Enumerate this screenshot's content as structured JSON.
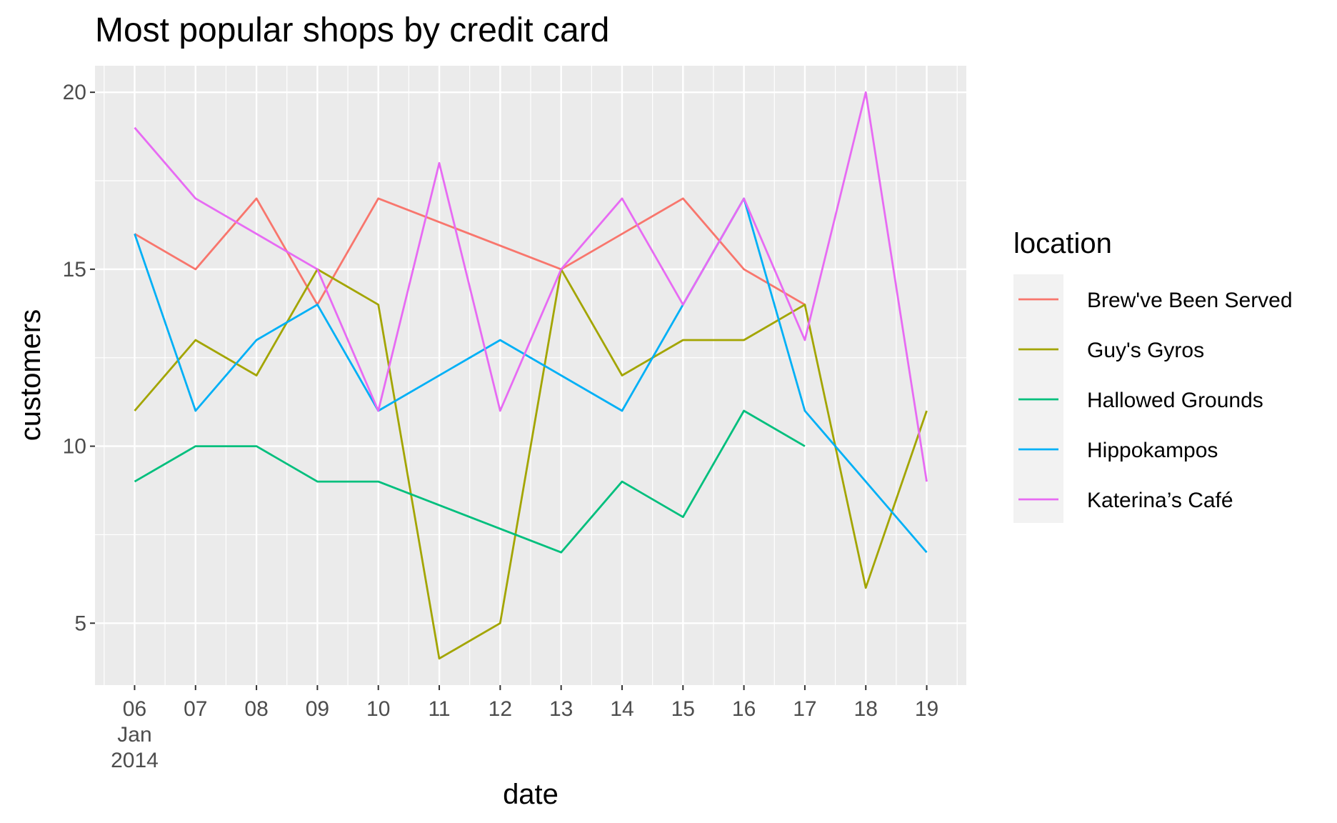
{
  "chart_data": {
    "type": "line",
    "title": "Most popular shops by credit card",
    "xlabel": "date",
    "ylabel": "customers",
    "x": [
      "2014-01-06",
      "2014-01-07",
      "2014-01-08",
      "2014-01-09",
      "2014-01-10",
      "2014-01-11",
      "2014-01-12",
      "2014-01-13",
      "2014-01-14",
      "2014-01-15",
      "2014-01-16",
      "2014-01-17",
      "2014-01-18",
      "2014-01-19"
    ],
    "x_tick_labels": [
      "06",
      "07",
      "08",
      "09",
      "10",
      "11",
      "12",
      "13",
      "14",
      "15",
      "16",
      "17",
      "18",
      "19"
    ],
    "x_tick_sublabel": [
      "Jan",
      "2014"
    ],
    "y_ticks": [
      5,
      10,
      15,
      20
    ],
    "ylim": [
      3.25,
      20.75
    ],
    "grid": true,
    "legend": {
      "title": "location",
      "placement": "right"
    },
    "series": [
      {
        "name": "Brew've Been Served",
        "color": "#F8766D",
        "points": [
          [
            "2014-01-06",
            16
          ],
          [
            "2014-01-07",
            15
          ],
          [
            "2014-01-08",
            17
          ],
          [
            "2014-01-09",
            14
          ],
          [
            "2014-01-10",
            17
          ],
          [
            "2014-01-13",
            15
          ],
          [
            "2014-01-15",
            17
          ],
          [
            "2014-01-16",
            15
          ],
          [
            "2014-01-17",
            14
          ]
        ]
      },
      {
        "name": "Guy's Gyros",
        "color": "#A3A500",
        "points": [
          [
            "2014-01-06",
            11
          ],
          [
            "2014-01-07",
            13
          ],
          [
            "2014-01-08",
            12
          ],
          [
            "2014-01-09",
            15
          ],
          [
            "2014-01-10",
            14
          ],
          [
            "2014-01-11",
            4
          ],
          [
            "2014-01-12",
            5
          ],
          [
            "2014-01-13",
            15
          ],
          [
            "2014-01-14",
            12
          ],
          [
            "2014-01-15",
            13
          ],
          [
            "2014-01-16",
            13
          ],
          [
            "2014-01-17",
            14
          ],
          [
            "2014-01-18",
            6
          ],
          [
            "2014-01-19",
            11
          ]
        ]
      },
      {
        "name": "Hallowed Grounds",
        "color": "#00BF7D",
        "points": [
          [
            "2014-01-06",
            9
          ],
          [
            "2014-01-07",
            10
          ],
          [
            "2014-01-08",
            10
          ],
          [
            "2014-01-09",
            9
          ],
          [
            "2014-01-10",
            9
          ],
          [
            "2014-01-13",
            7
          ],
          [
            "2014-01-14",
            9
          ],
          [
            "2014-01-15",
            8
          ],
          [
            "2014-01-16",
            11
          ],
          [
            "2014-01-17",
            10
          ]
        ]
      },
      {
        "name": "Hippokampos",
        "color": "#00B0F6",
        "points": [
          [
            "2014-01-06",
            16
          ],
          [
            "2014-01-07",
            11
          ],
          [
            "2014-01-08",
            13
          ],
          [
            "2014-01-09",
            14
          ],
          [
            "2014-01-10",
            11
          ],
          [
            "2014-01-12",
            13
          ],
          [
            "2014-01-14",
            11
          ],
          [
            "2014-01-15",
            14
          ],
          [
            "2014-01-16",
            17
          ],
          [
            "2014-01-17",
            11
          ],
          [
            "2014-01-19",
            7
          ]
        ]
      },
      {
        "name": "Katerina’s Café",
        "color": "#E76BF3",
        "points": [
          [
            "2014-01-06",
            19
          ],
          [
            "2014-01-07",
            17
          ],
          [
            "2014-01-09",
            15
          ],
          [
            "2014-01-10",
            11
          ],
          [
            "2014-01-11",
            18
          ],
          [
            "2014-01-12",
            11
          ],
          [
            "2014-01-13",
            15
          ],
          [
            "2014-01-14",
            17
          ],
          [
            "2014-01-15",
            14
          ],
          [
            "2014-01-16",
            17
          ],
          [
            "2014-01-17",
            13
          ],
          [
            "2014-01-18",
            20
          ],
          [
            "2014-01-19",
            9
          ]
        ]
      }
    ]
  }
}
